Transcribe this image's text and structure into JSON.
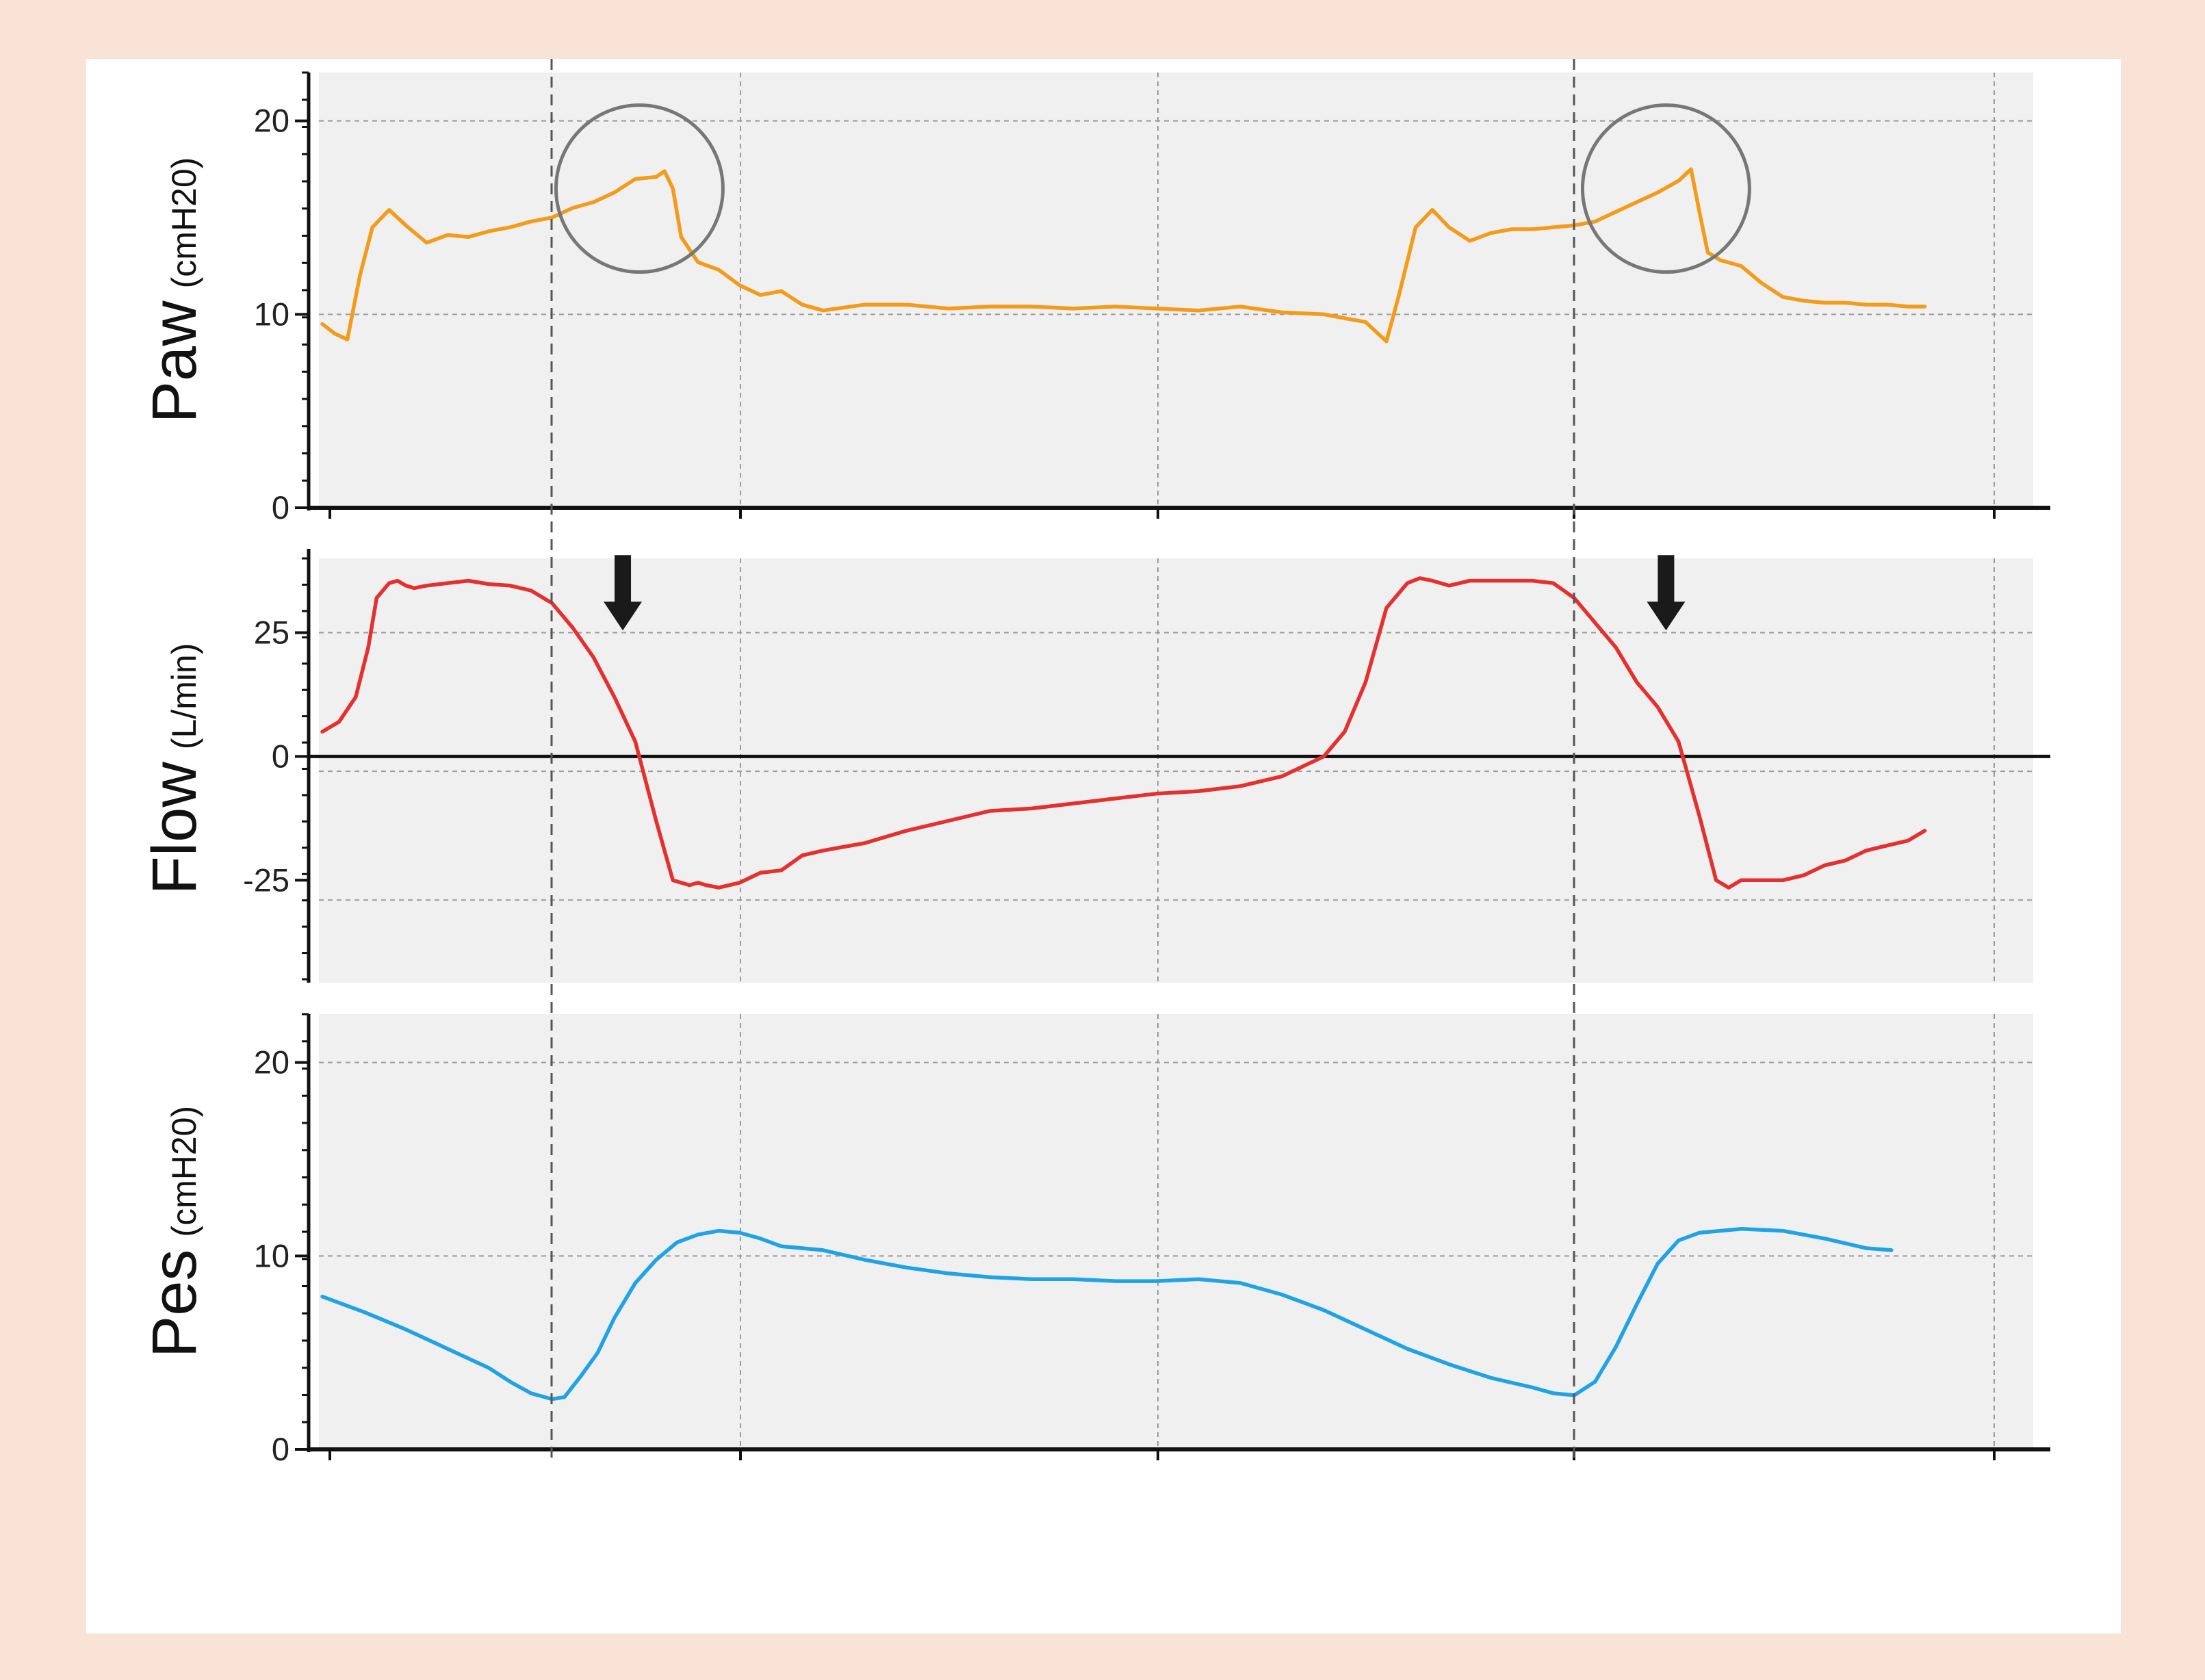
{
  "chart_data": [
    {
      "type": "line",
      "ylabel": "Paw",
      "yunit": "(cmH20)",
      "ylim": [
        0,
        22.5
      ],
      "yticks": [
        {
          "value": 0,
          "label": "0"
        },
        {
          "value": 10,
          "label": "10"
        },
        {
          "value": 20,
          "label": "20"
        }
      ],
      "hgrid": [
        10,
        20
      ],
      "xlim": [
        0,
        4.1
      ],
      "grid": true,
      "color": "#f39c1c",
      "markers": [
        {
          "type": "circle",
          "x": 0.76,
          "y": 16.5,
          "r": 0.2
        },
        {
          "type": "circle",
          "x": 3.22,
          "y": 16.5,
          "r": 0.2
        }
      ],
      "series": [
        {
          "x": [
            0,
            0.03,
            0.06,
            0.09,
            0.12,
            0.16,
            0.2,
            0.25,
            0.3,
            0.35,
            0.4,
            0.45,
            0.5,
            0.55,
            0.6,
            0.65,
            0.7,
            0.75,
            0.8,
            0.82,
            0.84,
            0.86,
            0.9,
            0.95,
            1.0,
            1.05,
            1.1,
            1.15,
            1.2,
            1.3,
            1.4,
            1.5,
            1.6,
            1.7,
            1.8,
            1.9,
            2.0,
            2.1,
            2.2,
            2.3,
            2.4,
            2.45,
            2.5,
            2.55,
            2.58,
            2.62,
            2.66,
            2.7,
            2.75,
            2.8,
            2.85,
            2.9,
            2.95,
            3.0,
            3.05,
            3.1,
            3.15,
            3.2,
            3.25,
            3.28,
            3.3,
            3.32,
            3.35,
            3.4,
            3.45,
            3.5,
            3.55,
            3.6,
            3.65,
            3.7,
            3.75,
            3.8,
            3.84
          ],
          "y": [
            9.5,
            9.0,
            8.7,
            12.0,
            14.5,
            15.4,
            14.6,
            13.7,
            14.1,
            14.0,
            14.3,
            14.5,
            14.8,
            15.0,
            15.5,
            15.8,
            16.3,
            17.0,
            17.1,
            17.4,
            16.5,
            14.0,
            12.7,
            12.3,
            11.5,
            11.0,
            11.2,
            10.5,
            10.2,
            10.5,
            10.5,
            10.3,
            10.4,
            10.4,
            10.3,
            10.4,
            10.3,
            10.2,
            10.4,
            10.1,
            10.0,
            9.8,
            9.6,
            8.6,
            11.0,
            14.5,
            15.4,
            14.5,
            13.8,
            14.2,
            14.4,
            14.4,
            14.5,
            14.6,
            14.8,
            15.3,
            15.8,
            16.3,
            16.9,
            17.5,
            15.3,
            13.2,
            12.8,
            12.5,
            11.6,
            10.9,
            10.7,
            10.6,
            10.6,
            10.5,
            10.5,
            10.4,
            10.4
          ]
        }
      ]
    },
    {
      "type": "line",
      "ylabel": "Flow",
      "yunit": "(L/min)",
      "ylim": [
        -45,
        40
      ],
      "yticks": [
        {
          "value": -25,
          "label": "-25"
        },
        {
          "value": 0,
          "label": "0"
        },
        {
          "value": 25,
          "label": "25"
        }
      ],
      "hgrid": [
        25,
        -3,
        -29
      ],
      "zero_line": 0,
      "xlim": [
        0,
        4.1
      ],
      "grid": true,
      "color": "#e53030",
      "markers": [
        {
          "type": "arrow-down",
          "x": 0.72,
          "y": 39
        },
        {
          "type": "arrow-down",
          "x": 3.22,
          "y": 39
        }
      ],
      "series": [
        {
          "x": [
            0,
            0.04,
            0.08,
            0.11,
            0.13,
            0.16,
            0.18,
            0.2,
            0.22,
            0.25,
            0.3,
            0.35,
            0.4,
            0.45,
            0.5,
            0.55,
            0.6,
            0.65,
            0.7,
            0.75,
            0.8,
            0.84,
            0.88,
            0.9,
            0.92,
            0.95,
            1.0,
            1.05,
            1.1,
            1.15,
            1.2,
            1.3,
            1.4,
            1.5,
            1.6,
            1.7,
            1.8,
            1.9,
            2.0,
            2.1,
            2.2,
            2.3,
            2.4,
            2.45,
            2.5,
            2.55,
            2.6,
            2.63,
            2.66,
            2.7,
            2.75,
            2.8,
            2.85,
            2.9,
            2.95,
            3.0,
            3.05,
            3.1,
            3.15,
            3.2,
            3.25,
            3.3,
            3.34,
            3.37,
            3.4,
            3.45,
            3.5,
            3.55,
            3.6,
            3.65,
            3.7,
            3.75,
            3.8,
            3.84
          ],
          "y": [
            5,
            7,
            12,
            22,
            32,
            35,
            35.5,
            34.5,
            34.0,
            34.5,
            35.0,
            35.5,
            34.8,
            34.5,
            33.5,
            31.0,
            26.0,
            20.0,
            12.0,
            3.0,
            -13.0,
            -25.0,
            -26.0,
            -25.5,
            -26.0,
            -26.5,
            -25.5,
            -23.5,
            -23.0,
            -20.0,
            -19.0,
            -17.5,
            -15.0,
            -13.0,
            -11.0,
            -10.5,
            -9.5,
            -8.5,
            -7.5,
            -7.0,
            -6.0,
            -4.0,
            0,
            5,
            15,
            30,
            35,
            36,
            35.5,
            34.5,
            35.5,
            35.5,
            35.5,
            35.5,
            35.0,
            32.0,
            27.0,
            22.0,
            15.0,
            10.0,
            3.0,
            -12.0,
            -25.0,
            -26.5,
            -25.0,
            -25.0,
            -25.0,
            -24.0,
            -22.0,
            -21.0,
            -19.0,
            -18.0,
            -17.0,
            -15.0
          ]
        }
      ]
    },
    {
      "type": "line",
      "ylabel": "Pes",
      "yunit": "(cmH20)",
      "ylim": [
        0,
        22.5
      ],
      "yticks": [
        {
          "value": 0,
          "label": "0"
        },
        {
          "value": 10,
          "label": "10"
        },
        {
          "value": 20,
          "label": "20"
        }
      ],
      "hgrid": [
        10,
        20
      ],
      "xlim": [
        0,
        4.1
      ],
      "grid": true,
      "color": "#1fa3e4",
      "markers": [],
      "series": [
        {
          "x": [
            0,
            0.1,
            0.2,
            0.3,
            0.4,
            0.45,
            0.5,
            0.55,
            0.58,
            0.62,
            0.66,
            0.7,
            0.75,
            0.8,
            0.85,
            0.9,
            0.95,
            1.0,
            1.05,
            1.1,
            1.2,
            1.3,
            1.4,
            1.5,
            1.6,
            1.7,
            1.8,
            1.9,
            2.0,
            2.1,
            2.2,
            2.3,
            2.4,
            2.5,
            2.6,
            2.7,
            2.8,
            2.9,
            2.95,
            3.0,
            3.05,
            3.1,
            3.15,
            3.2,
            3.25,
            3.3,
            3.35,
            3.4,
            3.5,
            3.6,
            3.7,
            3.76
          ],
          "y": [
            7.9,
            7.1,
            6.2,
            5.2,
            4.2,
            3.5,
            2.9,
            2.6,
            2.7,
            3.8,
            5.0,
            6.8,
            8.6,
            9.8,
            10.7,
            11.1,
            11.3,
            11.2,
            10.9,
            10.5,
            10.3,
            9.8,
            9.4,
            9.1,
            8.9,
            8.8,
            8.8,
            8.7,
            8.7,
            8.8,
            8.6,
            8.0,
            7.2,
            6.2,
            5.2,
            4.4,
            3.7,
            3.2,
            2.9,
            2.8,
            3.5,
            5.3,
            7.5,
            9.6,
            10.8,
            11.2,
            11.3,
            11.4,
            11.3,
            10.9,
            10.4,
            10.3
          ]
        }
      ]
    }
  ]
}
